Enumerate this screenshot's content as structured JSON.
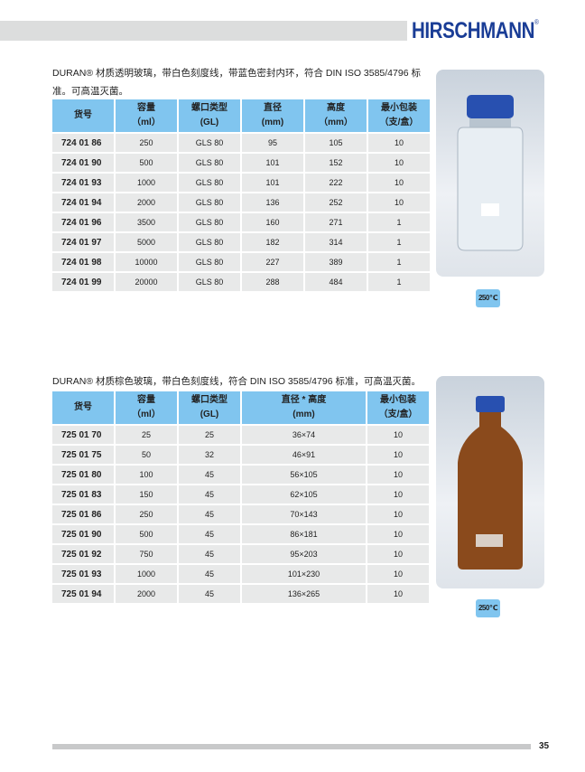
{
  "header": {
    "brand": "HIRSCHMANN",
    "registered": "®"
  },
  "section1": {
    "description": "DURAN® 材质透明玻璃，带白色刻度线，带蓝色密封内环，符合 DIN ISO 3585/4796 标准。可高温灭菌。",
    "columns": [
      [
        "货号",
        ""
      ],
      [
        "容量",
        "（ml）"
      ],
      [
        "螺口类型",
        "(GL)"
      ],
      [
        "直径",
        "(mm)"
      ],
      [
        "高度",
        "（mm）"
      ],
      [
        "最小包装",
        "（支/盒）"
      ]
    ],
    "rows": [
      [
        "724 01 86",
        "250",
        "GLS 80",
        "95",
        "105",
        "10"
      ],
      [
        "724 01 90",
        "500",
        "GLS 80",
        "101",
        "152",
        "10"
      ],
      [
        "724 01 93",
        "1000",
        "GLS 80",
        "101",
        "222",
        "10"
      ],
      [
        "724 01 94",
        "2000",
        "GLS 80",
        "136",
        "252",
        "10"
      ],
      [
        "724 01 96",
        "3500",
        "GLS 80",
        "160",
        "271",
        "1"
      ],
      [
        "724 01 97",
        "5000",
        "GLS 80",
        "182",
        "314",
        "1"
      ],
      [
        "724 01 98",
        "10000",
        "GLS 80",
        "227",
        "389",
        "1"
      ],
      [
        "724 01 99",
        "20000",
        "GLS 80",
        "288",
        "484",
        "1"
      ]
    ],
    "badge": "250℃"
  },
  "section2": {
    "description": "DURAN® 材质棕色玻璃，带白色刻度线，符合 DIN ISO 3585/4796 标准，可高温灭菌。",
    "columns": [
      [
        "货号",
        ""
      ],
      [
        "容量",
        "（ml）"
      ],
      [
        "螺口类型",
        "(GL)"
      ],
      [
        "直径 * 高度",
        "(mm)"
      ],
      [
        "最小包装",
        "（支/盒）"
      ]
    ],
    "rows": [
      [
        "725 01 70",
        "25",
        "25",
        "36×74",
        "10"
      ],
      [
        "725 01 75",
        "50",
        "32",
        "46×91",
        "10"
      ],
      [
        "725 01 80",
        "100",
        "45",
        "56×105",
        "10"
      ],
      [
        "725 01 83",
        "150",
        "45",
        "62×105",
        "10"
      ],
      [
        "725 01 86",
        "250",
        "45",
        "70×143",
        "10"
      ],
      [
        "725 01 90",
        "500",
        "45",
        "86×181",
        "10"
      ],
      [
        "725 01 92",
        "750",
        "45",
        "95×203",
        "10"
      ],
      [
        "725 01 93",
        "1000",
        "45",
        "101×230",
        "10"
      ],
      [
        "725 01 94",
        "2000",
        "45",
        "136×265",
        "10"
      ]
    ],
    "badge": "250℃"
  },
  "footer": {
    "page_number": "35"
  },
  "colors": {
    "brand": "#1a3d96",
    "table_header": "#80c5ef",
    "table_cell": "#e8e9e9",
    "cap": "#2850b0",
    "amber": "#8a4a1c"
  }
}
